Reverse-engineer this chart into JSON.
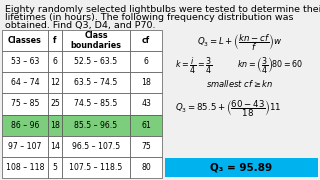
{
  "title_line1": "Eighty randomly selected lightbulbs were tested to determine their",
  "title_line2": "lifetimes (in hours). The following frequency distribution was",
  "title_line3": "obtained. Find Q3, D4, and P70.",
  "title_fontsize": 6.8,
  "col_headers": [
    "Classes",
    "f",
    "Class\nboundaries",
    "cf"
  ],
  "rows": [
    [
      "53 – 63",
      "6",
      "52.5 – 63.5",
      "6"
    ],
    [
      "64 – 74",
      "12",
      "63.5 – 74.5",
      "18"
    ],
    [
      "75 – 85",
      "25",
      "74.5 – 85.5",
      "43"
    ],
    [
      "86 – 96",
      "18",
      "85.5 – 96.5",
      "61"
    ],
    [
      "97 – 107",
      "14",
      "96.5 – 107.5",
      "75"
    ],
    [
      "108 – 118",
      "5",
      "107.5 – 118.5",
      "80"
    ]
  ],
  "highlight_row": 3,
  "highlight_color": "#7CCD7C",
  "result_text": "Q₃ = 95.89",
  "result_bg": "#00B2EE",
  "result_fontsize": 7.5,
  "bg_color": "#f0f0f0"
}
